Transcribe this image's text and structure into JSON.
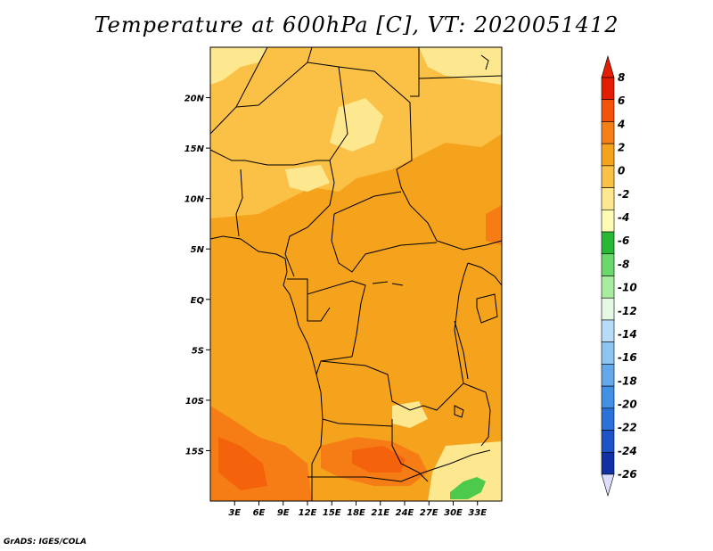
{
  "title": "Temperature at 600hPa [C], VT: 2020051412",
  "credit": "GrADS: IGES/COLA",
  "map": {
    "lon_range": [
      0,
      36
    ],
    "lat_range": [
      -20,
      25
    ],
    "x_ticks": [
      {
        "value": 3,
        "label": "3E"
      },
      {
        "value": 6,
        "label": "6E"
      },
      {
        "value": 9,
        "label": "9E"
      },
      {
        "value": 12,
        "label": "12E"
      },
      {
        "value": 15,
        "label": "15E"
      },
      {
        "value": 18,
        "label": "18E"
      },
      {
        "value": 21,
        "label": "21E"
      },
      {
        "value": 24,
        "label": "24E"
      },
      {
        "value": 27,
        "label": "27E"
      },
      {
        "value": 30,
        "label": "30E"
      },
      {
        "value": 33,
        "label": "33E"
      }
    ],
    "y_ticks": [
      {
        "value": 20,
        "label": "20N"
      },
      {
        "value": 15,
        "label": "15N"
      },
      {
        "value": 10,
        "label": "10N"
      },
      {
        "value": 5,
        "label": "5N"
      },
      {
        "value": 0,
        "label": "EQ"
      },
      {
        "value": -5,
        "label": "5S"
      },
      {
        "value": -10,
        "label": "10S"
      },
      {
        "value": -15,
        "label": "15S"
      }
    ],
    "colors": {
      "dominant": "#f5a21c",
      "light": "#fbc046",
      "pale": "#fde890",
      "warm": "#f67d16",
      "hot": "#f5620c",
      "cool": "#4dca4b",
      "border": "#000000"
    }
  },
  "colorbar": {
    "labels": [
      "8",
      "6",
      "4",
      "2",
      "0",
      "-2",
      "-4",
      "-6",
      "-8",
      "-10",
      "-12",
      "-14",
      "-16",
      "-18",
      "-20",
      "-22",
      "-24",
      "-26"
    ],
    "colors": [
      "#e41c00",
      "#f4520a",
      "#f67e16",
      "#f5a21c",
      "#fbc046",
      "#fde890",
      "#fefcb4",
      "#28b833",
      "#6ad86a",
      "#a8ecA0",
      "#e4f8e4",
      "#b6dcf8",
      "#8cc4f2",
      "#64a8ec",
      "#4090e4",
      "#2a72da",
      "#1c54c8",
      "#1030a4"
    ],
    "under_color": "#dcdcfc",
    "over_color": "#c80a00",
    "top_cap_color": "#e41c00",
    "bottom_cap_color": "#dcdcfc"
  }
}
